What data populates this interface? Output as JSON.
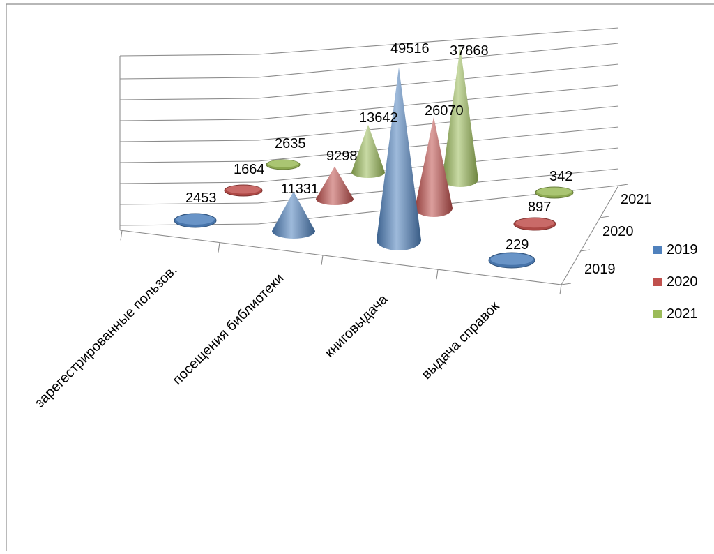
{
  "chart_data": {
    "type": "bar",
    "style": "3d-cone",
    "categories": [
      "зарегестрированные пользов.",
      "посещения библиотеки",
      "книговыдача",
      "выдача справок"
    ],
    "series": [
      {
        "name": "2019",
        "values": [
          2453,
          11331,
          49516,
          229
        ]
      },
      {
        "name": "2020",
        "values": [
          1664,
          9298,
          26070,
          897
        ]
      },
      {
        "name": "2021",
        "values": [
          2635,
          13642,
          37868,
          342
        ]
      }
    ],
    "depth_labels": [
      "2019",
      "2020",
      "2021"
    ],
    "ylim": [
      0,
      50000
    ],
    "grid": true,
    "legend": "right",
    "data_labels": true,
    "colors": {
      "2019": "#4f81bd",
      "2020": "#c0504d",
      "2021": "#9bbb59"
    }
  }
}
